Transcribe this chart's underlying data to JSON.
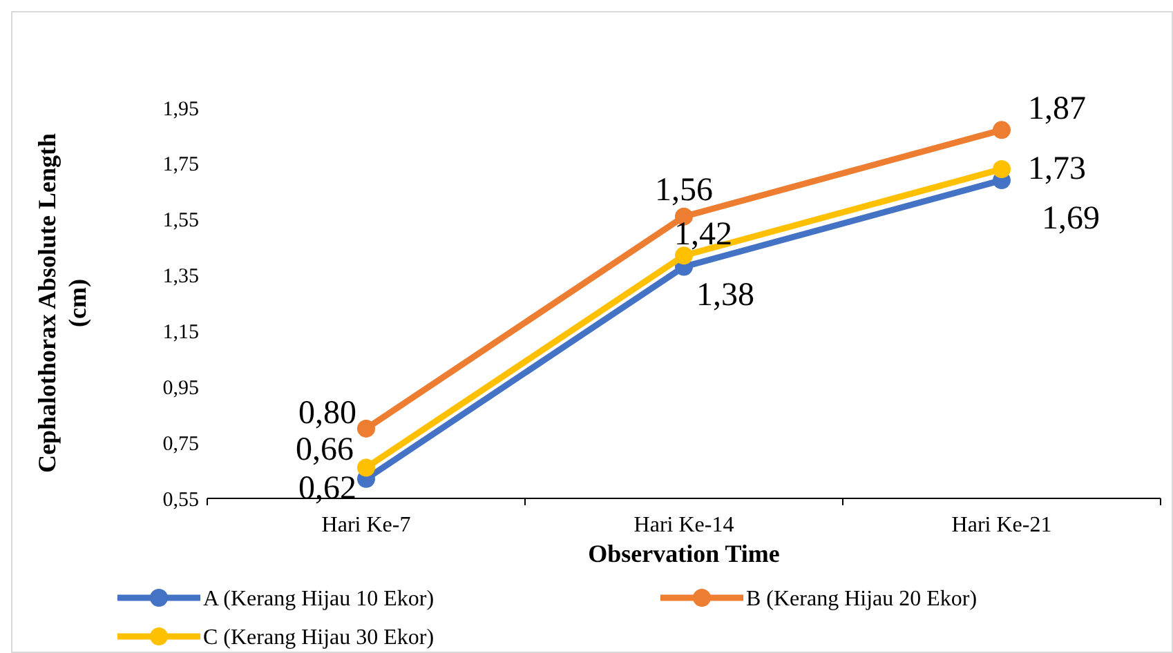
{
  "chart_data": {
    "type": "line",
    "xlabel": "Observation Time",
    "ylabel": "Cephalothorax Absolute Length (cm)",
    "categories": [
      "Hari Ke-7",
      "Hari Ke-14",
      "Hari Ke-21"
    ],
    "series": [
      {
        "name": "A (Kerang Hijau 10 Ekor)",
        "color": "#4472c4",
        "values": [
          0.62,
          1.38,
          1.69
        ],
        "value_labels": [
          "0,62",
          "1,38",
          "1,69"
        ]
      },
      {
        "name": "B (Kerang Hijau 20 Ekor)",
        "color": "#ed7d31",
        "values": [
          0.8,
          1.56,
          1.87
        ],
        "value_labels": [
          "0,80",
          "1,56",
          "1,87"
        ]
      },
      {
        "name": "C (Kerang Hijau 30 Ekor)",
        "color": "#ffc000",
        "values": [
          0.66,
          1.42,
          1.73
        ],
        "value_labels": [
          "0,66",
          "1,42",
          "1,73"
        ]
      }
    ],
    "ylim": [
      0.55,
      1.95
    ],
    "yticks": [
      {
        "value": 0.55,
        "label": "0,55"
      },
      {
        "value": 0.75,
        "label": "0,75"
      },
      {
        "value": 0.95,
        "label": "0,95"
      },
      {
        "value": 1.15,
        "label": "1,15"
      },
      {
        "value": 1.35,
        "label": "1,35"
      },
      {
        "value": 1.55,
        "label": "1,55"
      },
      {
        "value": 1.75,
        "label": "1,75"
      },
      {
        "value": 1.95,
        "label": "1,95"
      }
    ],
    "grid": false,
    "legend": "bottom",
    "marker": "circle",
    "line_style": "solid"
  }
}
